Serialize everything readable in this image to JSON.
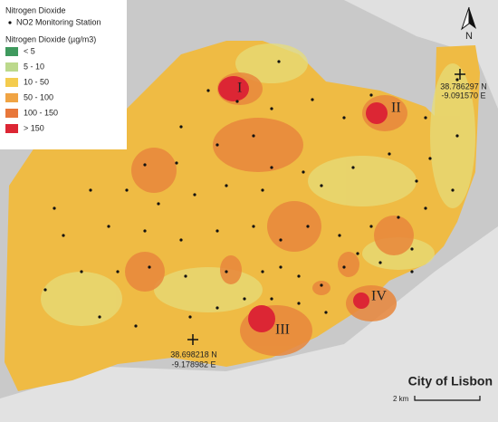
{
  "legend": {
    "title": "Nitrogen Dioxide",
    "station": "NO2 Monitoring Station",
    "subtitle": "Nitrogen Dioxide (µg/m3)",
    "classes": [
      {
        "label": "< 5",
        "color": "#3f9a5e"
      },
      {
        "label": "5 - 10",
        "color": "#bcd98c"
      },
      {
        "label": "10 - 50",
        "color": "#f4cc4e"
      },
      {
        "label": "50 - 100",
        "color": "#f0a444"
      },
      {
        "label": "100 - 150",
        "color": "#e8773a"
      },
      {
        "label": "> 150",
        "color": "#dc2634"
      }
    ]
  },
  "hotspots": [
    "I",
    "II",
    "III",
    "IV"
  ],
  "coordinates": [
    {
      "lat": "38.786297 N",
      "lon": "-9.091570 E"
    },
    {
      "lat": "38.698218 N",
      "lon": "-9.178982 E"
    }
  ],
  "city": "City of Lisbon",
  "scale": "2 km",
  "north": "N"
}
